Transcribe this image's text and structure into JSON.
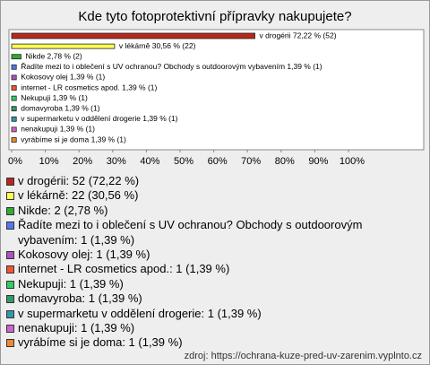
{
  "chart_data": {
    "type": "bar",
    "orientation": "horizontal",
    "title": "Kde tyto fotoprotektivní přípravky nakupujete?",
    "categories": [
      "v drogérii",
      "v lékárně",
      "Nikde",
      "Řadíte mezi to i oblečení s UV ochranou? Obchody s outdoorovým vybavením",
      "Kokosovy olej",
      "internet - LR cosmetics apod.",
      "Nekupuji",
      "domavyroba",
      "v supermarketu v oddělení drogerie",
      "nenakupuji",
      "vyrábíme si je doma"
    ],
    "values": [
      72.22,
      30.56,
      2.78,
      1.39,
      1.39,
      1.39,
      1.39,
      1.39,
      1.39,
      1.39,
      1.39
    ],
    "value_labels": [
      "v drogérii 72,22 % (52)",
      "v lékárně 30,56 % (22)",
      "Nikde 2,78 % (2)",
      "Řadíte mezi to i oblečení s UV ochranou? Obchody s outdoorovým vybavením 1,39 % (1)",
      "Kokosovy olej 1,39 % (1)",
      "internet - LR cosmetics apod. 1,39 % (1)",
      "Nekupuji 1,39 % (1)",
      "domavyroba 1,39 % (1)",
      "v supermarketu v oddělení drogerie 1,39 % (1)",
      "nenakupuji 1,39 % (1)",
      "vyrábíme si je doma 1,39 % (1)"
    ],
    "legend_labels": [
      "v drogérii: 52 (72,22 %)",
      "v lékárně: 22 (30,56 %)",
      "Nikde: 2 (2,78 %)",
      "Řadíte mezi to i oblečení s UV ochranou? Obchody s outdoorovým vybavením: 1 (1,39 %)",
      "Kokosovy olej: 1 (1,39 %)",
      "internet - LR cosmetics apod.: 1 (1,39 %)",
      "Nekupuji: 1 (1,39 %)",
      "domavyroba: 1 (1,39 %)",
      "v supermarketu v oddělení drogerie: 1 (1,39 %)",
      "nenakupuji: 1 (1,39 %)",
      "vyrábíme si je doma: 1 (1,39 %)"
    ],
    "colors": [
      "#b5281c",
      "#ffff55",
      "#33aa33",
      "#5577ee",
      "#aa55bb",
      "#ee5533",
      "#33cc66",
      "#339966",
      "#3399aa",
      "#cc66cc",
      "#ee8833"
    ],
    "xlim": [
      0,
      100
    ],
    "xticks": [
      {
        "value": 0,
        "label": "0%"
      },
      {
        "value": 10,
        "label": "10%"
      },
      {
        "value": 20,
        "label": "20%"
      },
      {
        "value": 30,
        "label": "30%"
      },
      {
        "value": 40,
        "label": "40%"
      },
      {
        "value": 50,
        "label": "50%"
      },
      {
        "value": 60,
        "label": "60%"
      },
      {
        "value": 70,
        "label": "70%"
      },
      {
        "value": 80,
        "label": "80%"
      },
      {
        "value": 90,
        "label": "90%"
      },
      {
        "value": 100,
        "label": "100%"
      }
    ],
    "source": "zdroj: https://ochrana-kuze-pred-uv-zarenim.vyplnto.cz"
  }
}
